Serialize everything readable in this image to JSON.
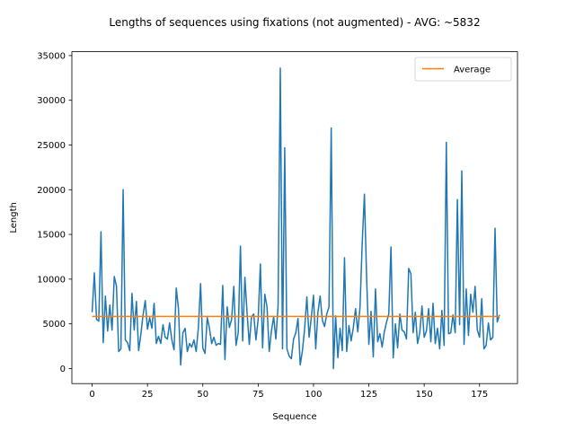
{
  "chart_data": {
    "type": "line",
    "title": "Lengths of sequences using fixations (not augmented) - AVG: ~5832",
    "xlabel": "Sequence",
    "ylabel": "Length",
    "xlim": [
      -9.15,
      192.15
    ],
    "ylim": [
      -1680,
      35430
    ],
    "xticks": [
      0,
      25,
      50,
      75,
      100,
      125,
      150,
      175
    ],
    "yticks": [
      0,
      5000,
      10000,
      15000,
      20000,
      25000,
      30000,
      35000
    ],
    "grid": false,
    "legend_position": "top-right",
    "legend": [
      "Average"
    ],
    "series": [
      {
        "name": "Length",
        "color": "#1f77b4",
        "values": [
          6300,
          10700,
          5500,
          5300,
          15300,
          2900,
          8100,
          4200,
          7100,
          4300,
          10300,
          9200,
          1900,
          2200,
          20000,
          3200,
          2900,
          2000,
          8400,
          4300,
          7500,
          2000,
          3800,
          6000,
          7600,
          4400,
          5700,
          4500,
          7300,
          2800,
          3600,
          2800,
          4900,
          3500,
          3300,
          5100,
          3200,
          2100,
          9000,
          6700,
          400,
          4000,
          4500,
          1900,
          2800,
          2400,
          3200,
          1900,
          4600,
          9500,
          2300,
          1700,
          5700,
          4500,
          2800,
          3500,
          2600,
          2800,
          2700,
          9300,
          1000,
          6900,
          4600,
          5500,
          9200,
          2600,
          4000,
          13700,
          3100,
          10200,
          6200,
          2700,
          5800,
          6100,
          3200,
          5500,
          11700,
          2300,
          8300,
          6900,
          1900,
          4200,
          5800,
          3300,
          7000,
          33600,
          2200,
          24700,
          2200,
          1400,
          1100,
          3300,
          4000,
          5600,
          400,
          2000,
          4500,
          8000,
          3500,
          5700,
          8200,
          2200,
          6300,
          8100,
          5400,
          4700,
          6100,
          6900,
          26900,
          0,
          5900,
          1200,
          4500,
          2000,
          12400,
          1900,
          4800,
          3100,
          4600,
          6700,
          4100,
          6800,
          14000,
          19500,
          10100,
          2700,
          6400,
          1300,
          8900,
          3000,
          3900,
          2400,
          4100,
          5200,
          6100,
          13600,
          1200,
          5000,
          2300,
          6100,
          4300,
          4100,
          3300,
          11200,
          10600,
          4000,
          6300,
          2800,
          4000,
          7000,
          3500,
          4200,
          6700,
          3000,
          7300,
          2800,
          4500,
          2200,
          6500,
          2600,
          25300,
          3900,
          4000,
          6000,
          4000,
          18900,
          4900,
          22100,
          2700,
          8900,
          3700,
          8300,
          6300,
          9200,
          4300,
          3500,
          7800,
          2200,
          2600,
          5100,
          3200,
          3500,
          15700,
          5200,
          6000
        ]
      },
      {
        "name": "Average",
        "color": "#ff7f0e",
        "values": [
          5832,
          5832
        ]
      }
    ]
  }
}
